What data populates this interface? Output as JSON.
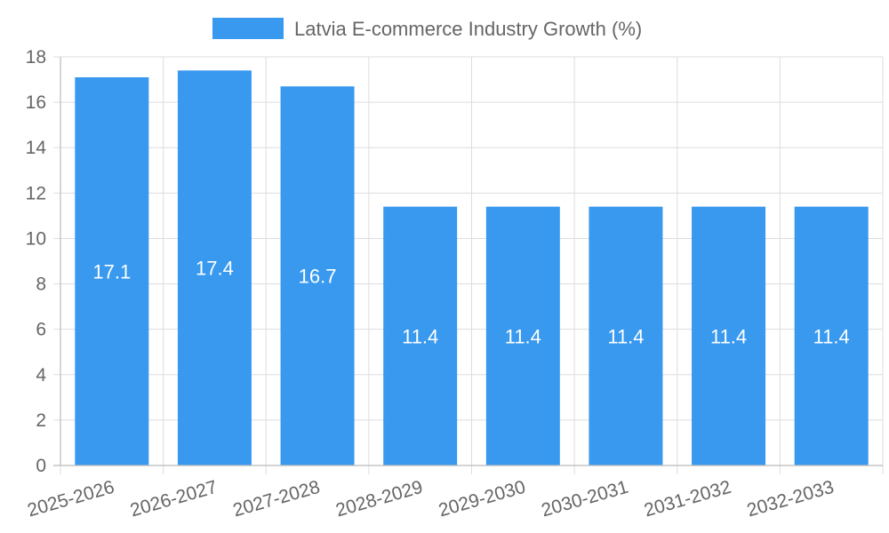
{
  "chart_data": {
    "type": "bar",
    "title": "",
    "xlabel": "",
    "ylabel": "",
    "categories": [
      "2025-2026",
      "2026-2027",
      "2027-2028",
      "2028-2029",
      "2029-2030",
      "2030-2031",
      "2031-2032",
      "2032-2033"
    ],
    "series": [
      {
        "name": "Latvia E-commerce Industry Growth (%)",
        "values": [
          17.1,
          17.4,
          16.7,
          11.4,
          11.4,
          11.4,
          11.4,
          11.4
        ],
        "color": "#3899ef"
      }
    ],
    "data_labels": [
      "17.1",
      "17.4",
      "16.7",
      "11.4",
      "11.4",
      "11.4",
      "11.4",
      "11.4"
    ],
    "ylim": [
      0,
      18
    ],
    "yticks": [
      0,
      2,
      4,
      6,
      8,
      10,
      12,
      14,
      16,
      18
    ],
    "grid": true,
    "legend_position": "top-center"
  }
}
